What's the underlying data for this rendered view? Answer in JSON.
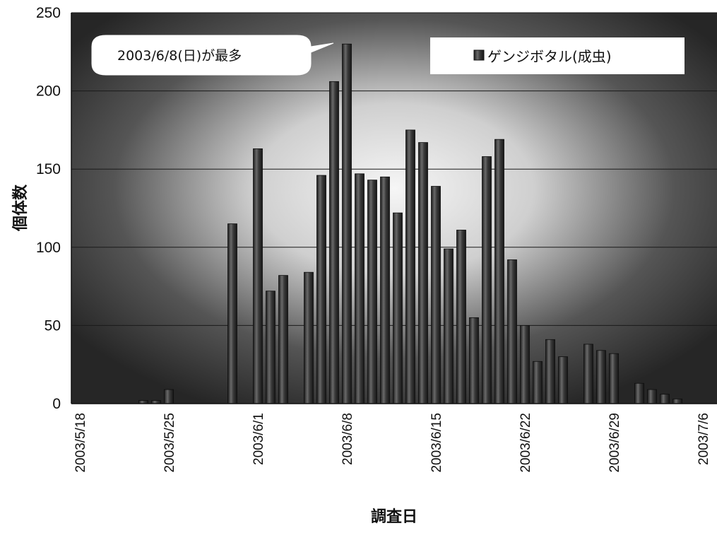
{
  "chart_data": {
    "type": "bar",
    "title": "",
    "xlabel": "調査日",
    "ylabel": "個体数",
    "ylim": [
      0,
      250
    ],
    "yticks": [
      "0",
      "50",
      "100",
      "150",
      "200",
      "250"
    ],
    "x_range": [
      "2003/5/18",
      "2003/7/6"
    ],
    "xticks": [
      "2003/5/18",
      "2003/5/25",
      "2003/6/1",
      "2003/6/8",
      "2003/6/15",
      "2003/6/22",
      "2003/6/29",
      "2003/7/6"
    ],
    "grid": true,
    "legend_position": "top-right",
    "series": [
      {
        "name": "ゲンジボタル(成虫)",
        "x": [
          "2003/5/23",
          "2003/5/24",
          "2003/5/25",
          "2003/5/30",
          "2003/6/1",
          "2003/6/2",
          "2003/6/3",
          "2003/6/5",
          "2003/6/6",
          "2003/6/7",
          "2003/6/8",
          "2003/6/9",
          "2003/6/10",
          "2003/6/11",
          "2003/6/12",
          "2003/6/13",
          "2003/6/14",
          "2003/6/15",
          "2003/6/16",
          "2003/6/17",
          "2003/6/18",
          "2003/6/19",
          "2003/6/20",
          "2003/6/21",
          "2003/6/22",
          "2003/6/23",
          "2003/6/24",
          "2003/6/25",
          "2003/6/27",
          "2003/6/28",
          "2003/6/29",
          "2003/7/1",
          "2003/7/2",
          "2003/7/3",
          "2003/7/4"
        ],
        "values": [
          2,
          2,
          9,
          115,
          163,
          72,
          82,
          84,
          146,
          206,
          230,
          147,
          143,
          145,
          122,
          175,
          167,
          139,
          99,
          111,
          55,
          158,
          169,
          92,
          50,
          27,
          41,
          30,
          38,
          34,
          32,
          13,
          9,
          6,
          3
        ]
      }
    ],
    "annotations": [
      {
        "text": "2003/6/8(日)が最多",
        "target_x": "2003/6/8"
      }
    ]
  },
  "legend": {
    "text": "ゲンジボタル(成虫)"
  },
  "callout": {
    "text": "2003/6/8(日)が最多"
  },
  "colors": {
    "bar": "#3a3a3a",
    "plot_dark": "#2a2a2a",
    "plot_light": "#f4f4f4"
  }
}
